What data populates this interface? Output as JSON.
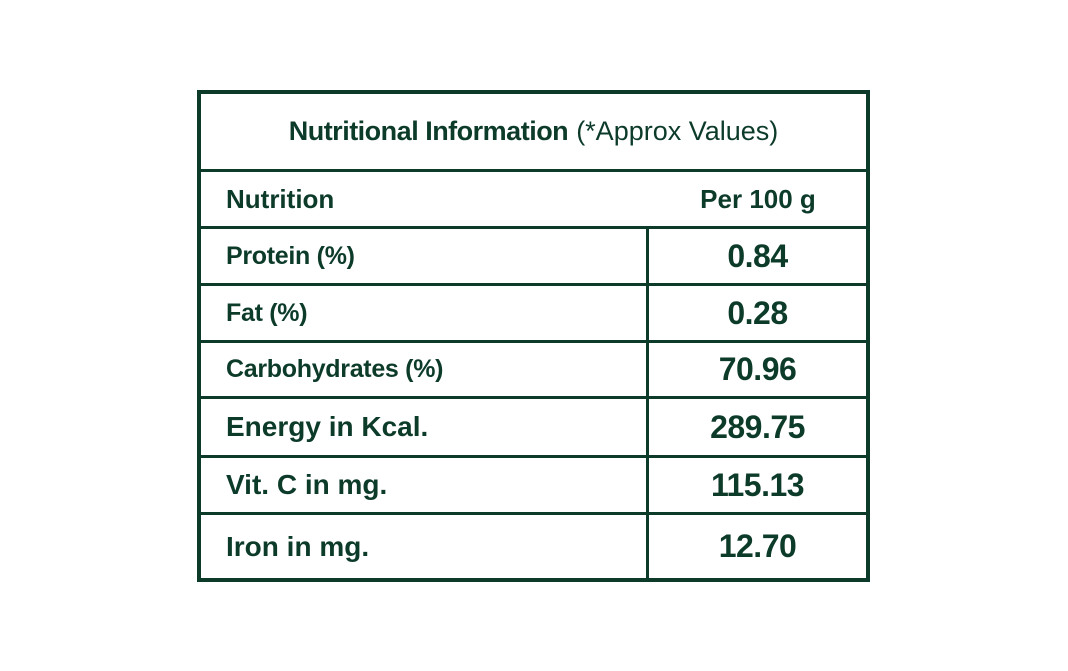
{
  "table": {
    "title_bold": "Nutritional Information",
    "title_normal": "(*Approx Values)",
    "header_left": "Nutrition",
    "header_right": "Per 100 g",
    "rows": [
      {
        "label": "Protein (%)",
        "value": "0.84"
      },
      {
        "label": "Fat (%)",
        "value": "0.28"
      },
      {
        "label": "Carbohydrates (%)",
        "value": "70.96"
      },
      {
        "label": "Energy in Kcal.",
        "value": "289.75"
      },
      {
        "label": "Vit. C in mg.",
        "value": "115.13"
      },
      {
        "label": "Iron in mg.",
        "value": "12.70"
      }
    ]
  },
  "colors": {
    "text": "#0d3b2a",
    "border": "#0d3b2a",
    "background": "#ffffff"
  }
}
